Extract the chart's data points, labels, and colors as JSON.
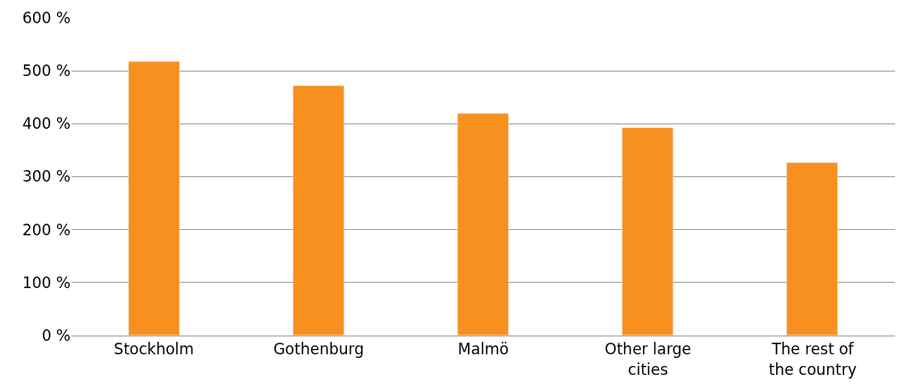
{
  "chart_data": {
    "type": "bar",
    "categories": [
      "Stockholm",
      "Gothenburg",
      "Malmö",
      "Other large cities",
      "The rest of the country"
    ],
    "values": [
      517,
      472,
      419,
      392,
      326
    ],
    "color": "#f7901e",
    "ylim": [
      0,
      600
    ],
    "yticks": [
      {
        "value": 0,
        "label": "0 %"
      },
      {
        "value": 100,
        "label": "100 %"
      },
      {
        "value": 200,
        "label": "200 %"
      },
      {
        "value": 300,
        "label": "300 %"
      },
      {
        "value": 400,
        "label": "400 %"
      },
      {
        "value": 500,
        "label": "500 %"
      },
      {
        "value": 600,
        "label": "600 %"
      }
    ],
    "grid": "y"
  }
}
